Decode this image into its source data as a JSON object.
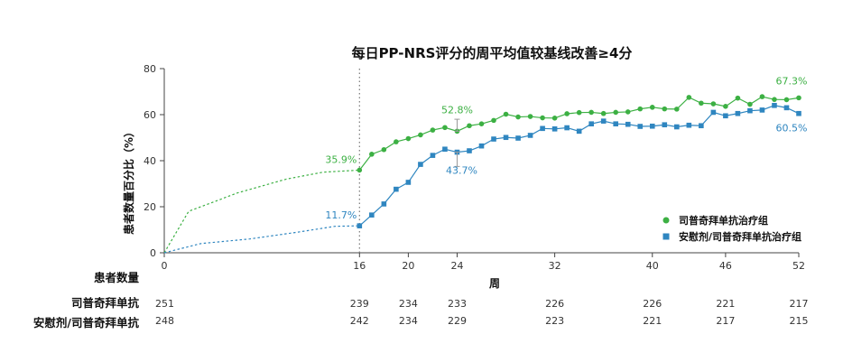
{
  "chart_data": {
    "type": "line",
    "title": "每日PP-NRS评分的周平均值较基线改善≥4分",
    "xlabel": "周",
    "ylabel": "患者数量百分比（%）",
    "xlim": [
      0,
      52
    ],
    "ylim": [
      0,
      80
    ],
    "x_ticks": [
      0,
      16,
      20,
      24,
      32,
      40,
      46,
      52
    ],
    "y_ticks": [
      0,
      20,
      40,
      60,
      80
    ],
    "grid": false,
    "legend_position": "bottom-right",
    "reference_line_x": 16,
    "colors": {
      "green": "#3cb043",
      "blue": "#2f86c0"
    },
    "series": [
      {
        "name": "司普奇拜单抗治疗组",
        "color": "#3cb043",
        "marker": "circle",
        "early_dashed": {
          "x": [
            0,
            2,
            6,
            10,
            13,
            16
          ],
          "y": [
            0,
            18,
            26,
            32,
            35,
            35.9
          ]
        },
        "x": [
          16,
          17,
          18,
          19,
          20,
          21,
          22,
          23,
          24,
          25,
          26,
          27,
          28,
          29,
          30,
          31,
          32,
          33,
          34,
          35,
          36,
          37,
          38,
          39,
          40,
          41,
          42,
          43,
          44,
          45,
          46,
          47,
          48,
          49,
          50,
          51,
          52
        ],
        "y": [
          35.9,
          42.8,
          44.8,
          48.2,
          49.6,
          51.2,
          53.3,
          54.4,
          52.8,
          55.2,
          56.0,
          57.5,
          60.2,
          59.0,
          59.2,
          58.6,
          58.5,
          60.4,
          60.9,
          61.0,
          60.5,
          61.0,
          61.2,
          62.5,
          63.2,
          62.5,
          62.4,
          67.5,
          65.0,
          64.7,
          63.6,
          67.2,
          64.5,
          67.8,
          66.6,
          66.5,
          67.3
        ]
      },
      {
        "name": "安慰剂/司普奇拜单抗治疗组",
        "color": "#2f86c0",
        "marker": "square",
        "early_dashed": {
          "x": [
            0,
            3,
            7,
            11,
            14,
            16
          ],
          "y": [
            0,
            4,
            6,
            9,
            11.5,
            11.7
          ]
        },
        "x": [
          16,
          17,
          18,
          19,
          20,
          21,
          22,
          23,
          24,
          25,
          26,
          27,
          28,
          29,
          30,
          31,
          32,
          33,
          34,
          35,
          36,
          37,
          38,
          39,
          40,
          41,
          42,
          43,
          44,
          45,
          46,
          47,
          48,
          49,
          50,
          51,
          52
        ],
        "y": [
          11.7,
          16.4,
          21.2,
          27.6,
          30.6,
          38.4,
          42.3,
          45.0,
          43.7,
          44.3,
          46.4,
          49.4,
          50.1,
          49.8,
          51.0,
          54.0,
          53.8,
          54.3,
          52.8,
          56.0,
          57.2,
          56.0,
          55.8,
          54.9,
          55.0,
          55.6,
          54.7,
          55.4,
          55.2,
          61.0,
          59.5,
          60.5,
          61.7,
          62.0,
          64.0,
          63.0,
          60.5
        ]
      }
    ],
    "annotations": [
      {
        "text": "35.9%",
        "x": 16,
        "y": 35.9,
        "series": 0
      },
      {
        "text": "11.7%",
        "x": 16,
        "y": 11.7,
        "series": 1
      },
      {
        "text": "52.8%",
        "x": 24,
        "y": 52.8,
        "series": 0
      },
      {
        "text": "43.7%",
        "x": 24,
        "y": 43.7,
        "series": 1
      },
      {
        "text": "67.3%",
        "x": 52,
        "y": 67.3,
        "series": 0
      },
      {
        "text": "60.5%",
        "x": 52,
        "y": 60.5,
        "series": 1
      }
    ],
    "error_bars": [
      {
        "x": 24,
        "low": 52.8,
        "high": 58.0,
        "series": 0
      },
      {
        "x": 24,
        "low": 37.5,
        "high": 43.7,
        "series": 1
      }
    ]
  },
  "table": {
    "header": "患者数量",
    "x": [
      0,
      16,
      20,
      24,
      32,
      40,
      46,
      52
    ],
    "rows": [
      {
        "label": "司普奇拜单抗",
        "values": [
          "251",
          "239",
          "234",
          "233",
          "226",
          "226",
          "221",
          "217"
        ]
      },
      {
        "label": "安慰剂/司普奇拜单抗",
        "values": [
          "248",
          "242",
          "234",
          "229",
          "223",
          "221",
          "217",
          "215"
        ]
      }
    ]
  }
}
